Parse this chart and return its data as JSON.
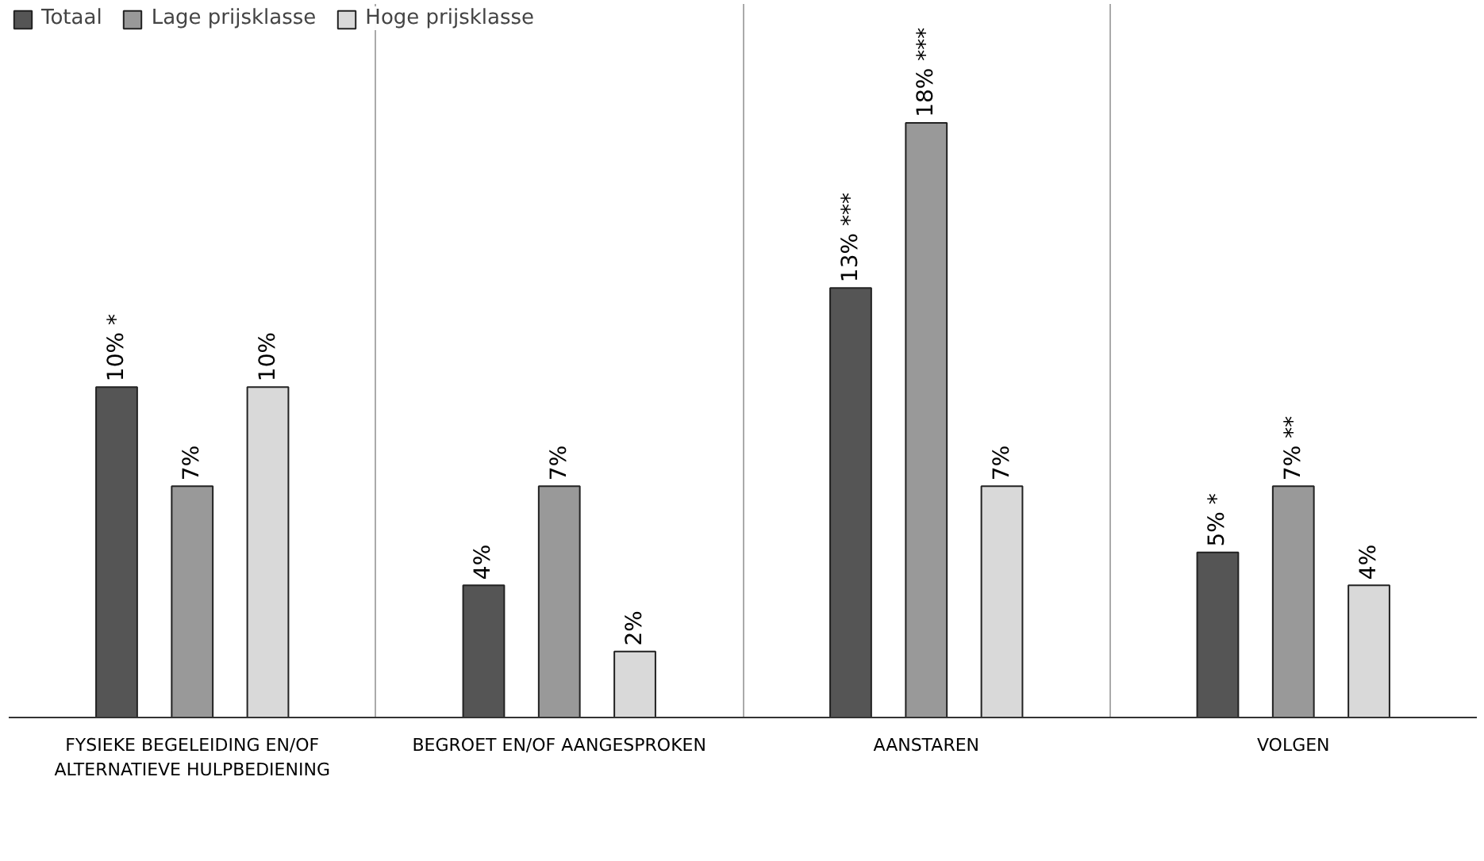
{
  "chart_data": {
    "type": "bar",
    "categories": [
      "FYSIEKE BEGELEIDING EN/OF ALTERNATIEVE HULPBEDIENING",
      "BEGROET EN/OF AANGESPROKEN",
      "AANSTAREN",
      "VOLGEN"
    ],
    "series": [
      {
        "name": "Totaal",
        "color": "#555555",
        "values": [
          10,
          4,
          13,
          5
        ],
        "value_labels": [
          "10% *",
          "4%",
          "13% ***",
          "5% *"
        ]
      },
      {
        "name": "Lage prijsklasse",
        "color": "#999999",
        "values": [
          7,
          7,
          18,
          7
        ],
        "value_labels": [
          "7%",
          "7%",
          "18% ***",
          "7% **"
        ]
      },
      {
        "name": "Hoge prijsklasse",
        "color": "#d9d9d9",
        "values": [
          10,
          2,
          7,
          4
        ],
        "value_labels": [
          "10%",
          "2%",
          "7%",
          "4%"
        ]
      }
    ],
    "grid": "x",
    "legend": "top left"
  }
}
